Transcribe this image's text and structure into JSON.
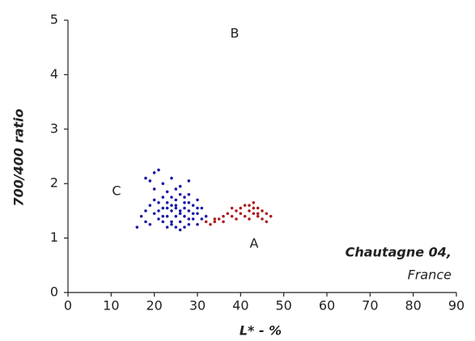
{
  "chart_data": {
    "type": "scatter",
    "x_label": "L* - %",
    "y_label": "700/400 ratio",
    "xlim": [
      0,
      90
    ],
    "xticks": [
      0,
      10,
      20,
      30,
      40,
      50,
      60,
      70,
      80,
      90
    ],
    "ylim": [
      0,
      5
    ],
    "yticks": [
      0,
      1,
      2,
      3,
      4,
      5
    ],
    "annotations": [
      "B",
      "C",
      "A",
      "Chautagne 04,",
      "France"
    ],
    "series": [
      {
        "color": "#1a1aa8",
        "x": [
          20,
          21,
          18,
          19,
          22,
          24,
          26,
          28,
          20,
          23,
          25,
          22,
          24,
          26,
          28,
          30,
          21,
          23,
          25,
          27,
          29,
          31,
          22,
          24,
          26,
          28,
          30,
          20,
          23,
          25,
          27,
          29,
          31,
          21,
          22,
          24,
          26,
          28,
          30,
          23,
          25,
          27,
          19,
          16,
          18,
          19,
          20,
          17,
          25,
          27,
          26,
          24,
          23,
          29,
          28,
          27,
          25,
          21,
          22,
          30,
          32,
          24,
          26,
          28,
          18
        ],
        "y": [
          2.2,
          2.25,
          2.1,
          2.05,
          2.0,
          2.1,
          1.95,
          2.05,
          1.9,
          1.85,
          1.9,
          1.75,
          1.75,
          1.8,
          1.8,
          1.7,
          1.65,
          1.65,
          1.6,
          1.65,
          1.6,
          1.55,
          1.55,
          1.5,
          1.5,
          1.5,
          1.45,
          1.45,
          1.4,
          1.4,
          1.4,
          1.35,
          1.35,
          1.35,
          1.3,
          1.3,
          1.3,
          1.25,
          1.25,
          1.2,
          1.2,
          1.2,
          1.25,
          1.2,
          1.5,
          1.6,
          1.7,
          1.4,
          1.55,
          1.55,
          1.45,
          1.6,
          1.55,
          1.45,
          1.65,
          1.75,
          1.7,
          1.5,
          1.4,
          1.55,
          1.4,
          1.25,
          1.15,
          1.35,
          1.3
        ]
      },
      {
        "color": "#b01c1c",
        "x": [
          32,
          33,
          34,
          35,
          36,
          37,
          38,
          39,
          40,
          40,
          41,
          41,
          42,
          42,
          43,
          43,
          44,
          44,
          45,
          45,
          46,
          46,
          47,
          39,
          38,
          36,
          34,
          43,
          42,
          44
        ],
        "y": [
          1.3,
          1.25,
          1.3,
          1.35,
          1.4,
          1.45,
          1.4,
          1.5,
          1.45,
          1.55,
          1.4,
          1.6,
          1.5,
          1.35,
          1.45,
          1.65,
          1.55,
          1.4,
          1.5,
          1.35,
          1.45,
          1.3,
          1.4,
          1.35,
          1.55,
          1.3,
          1.35,
          1.55,
          1.6,
          1.45
        ]
      }
    ]
  }
}
